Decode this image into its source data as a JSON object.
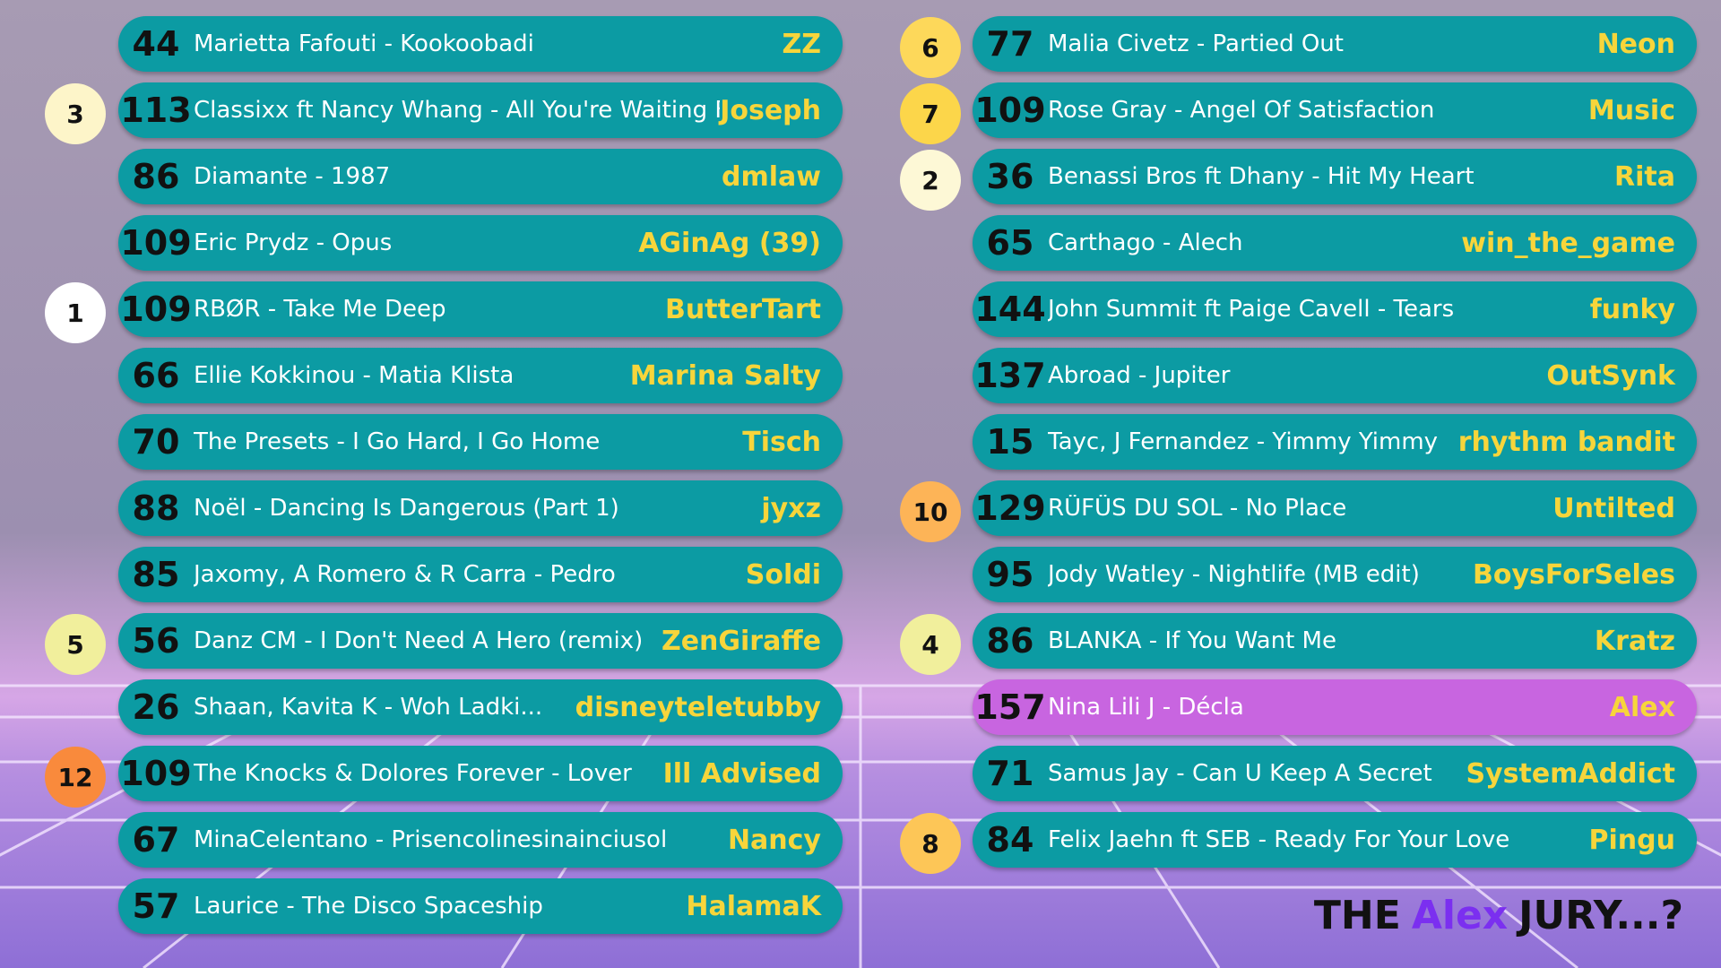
{
  "left": [
    {
      "score": 44,
      "song": "Marietta Fafouti - Kookoobadi",
      "user": "ZZ"
    },
    {
      "score": 113,
      "song": "Classixx ft Nancy Whang - All You're Waiting For",
      "user": "Joseph",
      "badge": {
        "points": 3,
        "color": "#fdf5c9"
      }
    },
    {
      "score": 86,
      "song": "Diamante - 1987",
      "user": "dmlaw"
    },
    {
      "score": 109,
      "song": "Eric Prydz - Opus",
      "user": "AGinAg (39)"
    },
    {
      "score": 109,
      "song": "RBØR - Take Me Deep",
      "user": "ButterTart",
      "badge": {
        "points": 1,
        "color": "#ffffff"
      }
    },
    {
      "score": 66,
      "song": "Ellie Kokkinou - Matia Klista",
      "user": "Marina Salty"
    },
    {
      "score": 70,
      "song": "The Presets - I Go Hard, I Go Home",
      "user": "Tisch"
    },
    {
      "score": 88,
      "song": "Noël - Dancing Is Dangerous (Part 1)",
      "user": "jyxz"
    },
    {
      "score": 85,
      "song": "Jaxomy, A Romero & R Carra - Pedro",
      "user": "Soldi"
    },
    {
      "score": 56,
      "song": "Danz CM - I Don't Need A Hero (remix)",
      "user": "ZenGiraffe",
      "badge": {
        "points": 5,
        "color": "#f1ef9c"
      }
    },
    {
      "score": 26,
      "song": "Shaan, Kavita K - Woh Ladki...",
      "user": "disneyteletubby"
    },
    {
      "score": 109,
      "song": "The Knocks & Dolores Forever - Lover",
      "user": "Ill Advised",
      "badge": {
        "points": 12,
        "color": "#f98a3c"
      }
    },
    {
      "score": 67,
      "song": "MinaCelentano - Prisencolinesinainciusol",
      "user": "Nancy"
    },
    {
      "score": 57,
      "song": "Laurice - The Disco Spaceship",
      "user": "HalamaK"
    }
  ],
  "right": [
    {
      "score": 77,
      "song": "Malia Civetz - Partied Out",
      "user": "Neon",
      "badge": {
        "points": 6,
        "color": "#fdd85a"
      }
    },
    {
      "score": 109,
      "song": "Rose Gray - Angel Of Satisfaction",
      "user": "Music",
      "badge": {
        "points": 7,
        "color": "#fcd64a"
      }
    },
    {
      "score": 36,
      "song": "Benassi Bros ft Dhany - Hit My Heart",
      "user": "Rita",
      "badge": {
        "points": 2,
        "color": "#fdf8d6"
      }
    },
    {
      "score": 65,
      "song": "Carthago - Alech",
      "user": "win_the_game"
    },
    {
      "score": 144,
      "song": "John Summit ft Paige Cavell - Tears",
      "user": "funky"
    },
    {
      "score": 137,
      "song": "Abroad - Jupiter",
      "user": "OutSynk"
    },
    {
      "score": 15,
      "song": "Tayc, J Fernandez - Yimmy Yimmy",
      "user": "rhythm bandit"
    },
    {
      "score": 129,
      "song": "RÜFÜS DU SOL - No Place",
      "user": "Untilted",
      "badge": {
        "points": 10,
        "color": "#fdb457"
      }
    },
    {
      "score": 95,
      "song": "Jody Watley - Nightlife (MB edit)",
      "user": "BoysForSeles"
    },
    {
      "score": 86,
      "song": "BLANKA - If You Want Me",
      "user": "Kratz",
      "badge": {
        "points": 4,
        "color": "#f1ef9c"
      }
    },
    {
      "score": 157,
      "song": "Nina Lili J - Décla",
      "user": "Alex",
      "color": "#c865e0"
    },
    {
      "score": 71,
      "song": "Samus Jay - Can U Keep A Secret",
      "user": "SystemAddict"
    },
    {
      "score": 84,
      "song": "Felix Jaehn ft SEB - Ready For Your Love",
      "user": "Pingu",
      "badge": {
        "points": 8,
        "color": "#fdc657"
      }
    }
  ],
  "footer": {
    "prefix": "THE",
    "name": "Alex",
    "suffix": "JURY...?"
  }
}
